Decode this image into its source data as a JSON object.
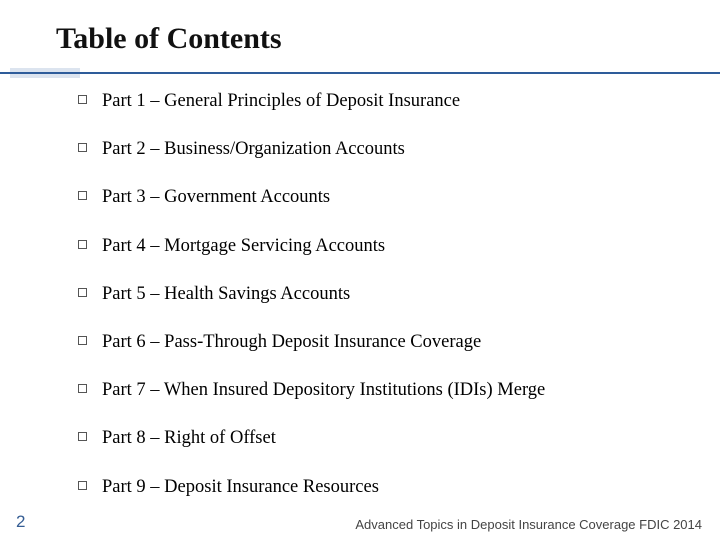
{
  "title": "Table of Contents",
  "accent_color": "#2e5c9a",
  "accent_block_color": "#dce4ef",
  "items": [
    "Part 1 – General Principles of Deposit Insurance",
    "Part 2 – Business/Organization Accounts",
    "Part 3 – Government Accounts",
    "Part 4 – Mortgage Servicing Accounts",
    "Part 5 – Health Savings Accounts",
    "Part 6 – Pass-Through Deposit Insurance Coverage",
    "Part 7 – When Insured Depository Institutions (IDIs) Merge",
    "Part 8 –  Right of Offset",
    "Part 9 – Deposit Insurance Resources"
  ],
  "page_number": "2",
  "footer": "Advanced Topics in Deposit Insurance Coverage FDIC 2014",
  "bullet_style": "hollow-square",
  "title_fontsize": 30,
  "item_fontsize": 18.5,
  "footer_fontsize": 13,
  "background_color": "#ffffff"
}
